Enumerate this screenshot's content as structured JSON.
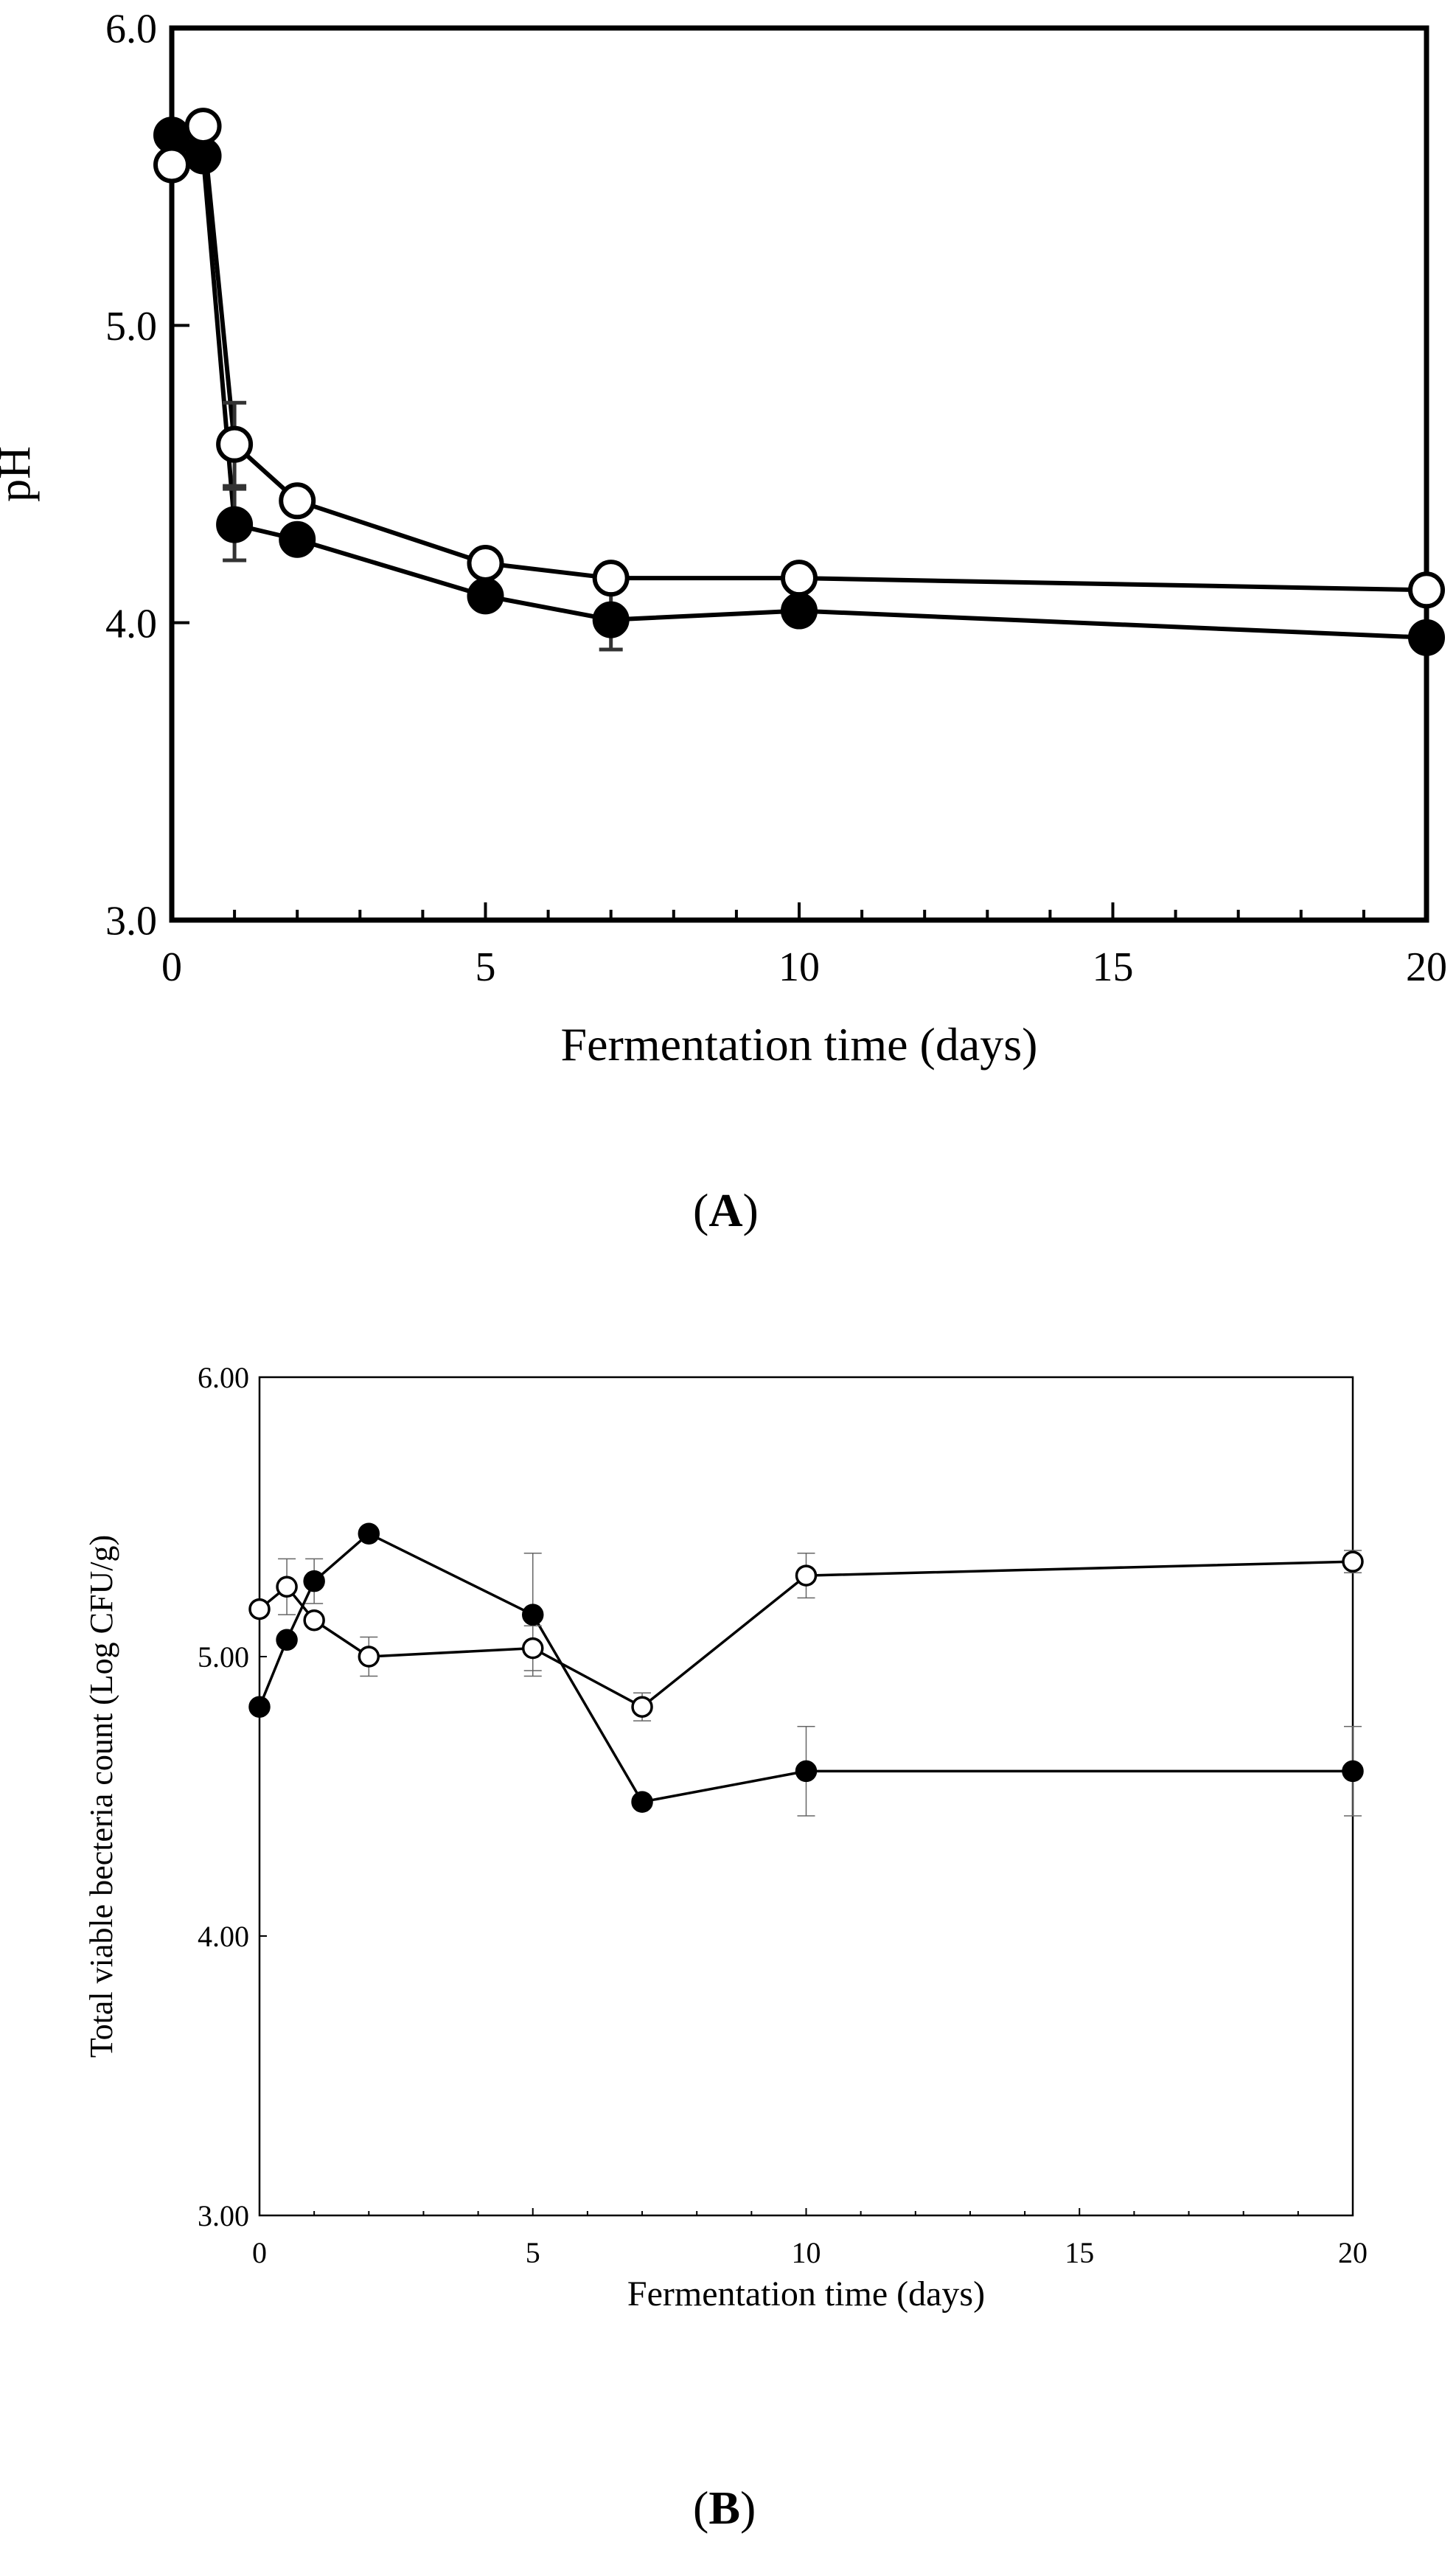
{
  "chart_data": [
    {
      "id": "A",
      "type": "line",
      "panel_label": "A",
      "title": "",
      "xlabel": "Fermentation time (days)",
      "ylabel": "pH",
      "xlim": [
        0,
        20
      ],
      "ylim": [
        3.0,
        6.0
      ],
      "x_ticks": [
        0,
        5,
        10,
        15,
        20
      ],
      "x_tick_labels": [
        "0",
        "5",
        "10",
        "15",
        "20"
      ],
      "y_ticks": [
        3.0,
        4.0,
        5.0,
        6.0
      ],
      "y_tick_labels": [
        "3.0",
        "4.0",
        "5.0",
        "6.0"
      ],
      "grid": false,
      "series": [
        {
          "name": "filled",
          "marker": "filled-circle",
          "points": [
            {
              "x": 0,
              "y": 5.64,
              "err": 0
            },
            {
              "x": 0.5,
              "y": 5.57,
              "err": 0
            },
            {
              "x": 1,
              "y": 4.33,
              "err": 0.12
            },
            {
              "x": 2,
              "y": 4.28,
              "err": 0
            },
            {
              "x": 5,
              "y": 4.09,
              "err": 0
            },
            {
              "x": 7,
              "y": 4.01,
              "err": 0.1
            },
            {
              "x": 10,
              "y": 4.04,
              "err": 0
            },
            {
              "x": 20,
              "y": 3.95,
              "err": 0
            }
          ]
        },
        {
          "name": "open",
          "marker": "open-circle",
          "points": [
            {
              "x": 0,
              "y": 5.54,
              "err": 0
            },
            {
              "x": 0.5,
              "y": 5.67,
              "err": 0
            },
            {
              "x": 1,
              "y": 4.6,
              "err": 0.14
            },
            {
              "x": 2,
              "y": 4.41,
              "err": 0
            },
            {
              "x": 5,
              "y": 4.2,
              "err": 0
            },
            {
              "x": 7,
              "y": 4.15,
              "err": 0.04
            },
            {
              "x": 10,
              "y": 4.15,
              "err": 0
            },
            {
              "x": 20,
              "y": 4.11,
              "err": 0
            }
          ]
        }
      ]
    },
    {
      "id": "B",
      "type": "line",
      "panel_label": "B",
      "title": "",
      "xlabel": "Fermentation time (days)",
      "ylabel": "Total viable becteria count (Log CFU/g)",
      "xlim": [
        0,
        20
      ],
      "ylim": [
        3.0,
        6.0
      ],
      "x_ticks": [
        0,
        5,
        10,
        15,
        20
      ],
      "x_tick_labels": [
        "0",
        "5",
        "10",
        "15",
        "20"
      ],
      "y_ticks": [
        3.0,
        4.0,
        5.0,
        6.0
      ],
      "y_tick_labels": [
        "3.00",
        "4.00",
        "5.00",
        "6.00"
      ],
      "grid": false,
      "series": [
        {
          "name": "filled",
          "marker": "filled-circle",
          "points": [
            {
              "x": 0,
              "y": 4.82,
              "err": 0
            },
            {
              "x": 0.5,
              "y": 5.06,
              "err": 0
            },
            {
              "x": 1,
              "y": 5.27,
              "err": 0.08
            },
            {
              "x": 2,
              "y": 5.44,
              "err": 0
            },
            {
              "x": 5,
              "y": 5.15,
              "err": 0.22
            },
            {
              "x": 7,
              "y": 4.48,
              "err": 0
            },
            {
              "x": 10,
              "y": 4.59,
              "err": 0.16
            },
            {
              "x": 20,
              "y": 4.59,
              "err": 0.16
            }
          ]
        },
        {
          "name": "open",
          "marker": "open-circle",
          "points": [
            {
              "x": 0,
              "y": 5.17,
              "err": 0
            },
            {
              "x": 0.5,
              "y": 5.25,
              "err": 0.1
            },
            {
              "x": 1,
              "y": 5.13,
              "err": 0
            },
            {
              "x": 2,
              "y": 5.0,
              "err": 0.07
            },
            {
              "x": 5,
              "y": 5.03,
              "err": 0.08
            },
            {
              "x": 7,
              "y": 4.82,
              "err": 0.05
            },
            {
              "x": 10,
              "y": 5.29,
              "err": 0.08
            },
            {
              "x": 20,
              "y": 5.34,
              "err": 0.04
            }
          ]
        }
      ]
    }
  ]
}
